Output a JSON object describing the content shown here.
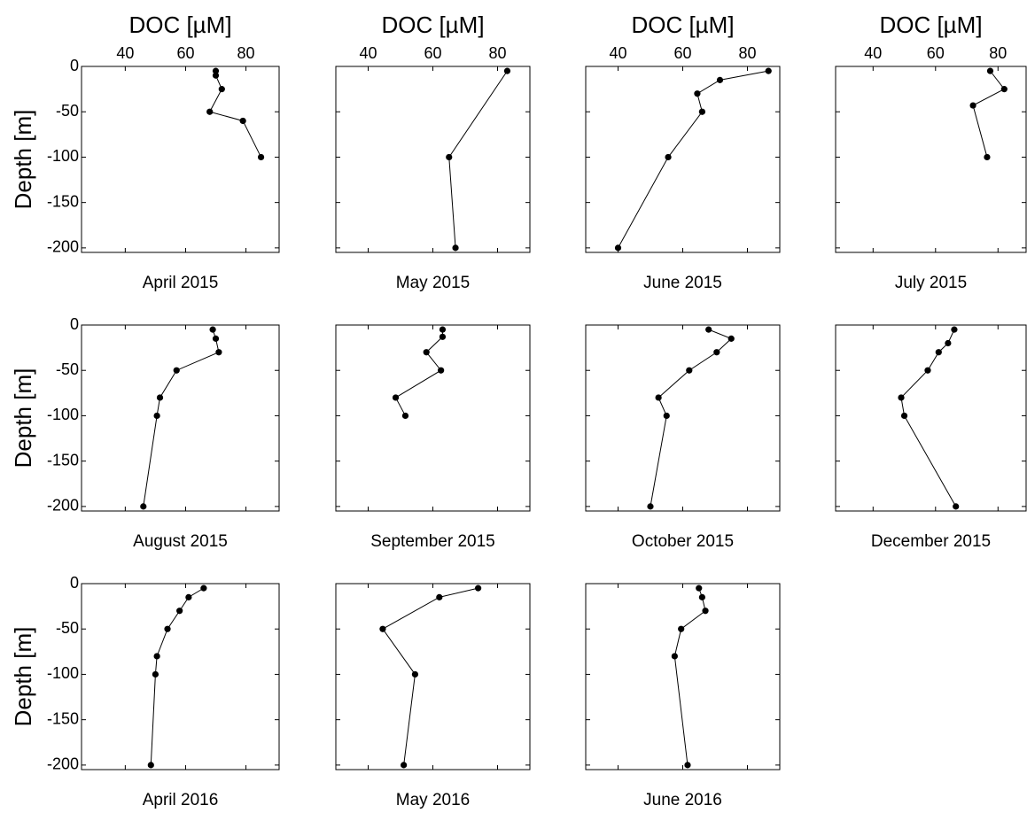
{
  "chart_data": [
    {
      "type": "line",
      "title": "April 2015",
      "xlabel": "DOC [µM]",
      "ylabel": "Depth [m]",
      "x": [
        70,
        70,
        72,
        68,
        79,
        85
      ],
      "values": [
        -5,
        -10,
        -25,
        -50,
        -60,
        -100
      ],
      "color": "#000000",
      "xlim": [
        25.5,
        91
      ],
      "ylim": [
        -205,
        0
      ],
      "xticks": [
        40,
        60,
        80
      ],
      "yticks": [
        0,
        -50,
        -100,
        -150,
        -200
      ]
    },
    {
      "type": "line",
      "title": "May 2015",
      "xlabel": "DOC [µM]",
      "x": [
        83,
        65,
        67
      ],
      "values": [
        -5,
        -100,
        -200
      ],
      "color": "#000000",
      "xlim": [
        30,
        90
      ],
      "ylim": [
        -205,
        0
      ],
      "xticks": [
        40,
        60,
        80
      ],
      "yticks": [
        0,
        -50,
        -100,
        -150,
        -200
      ]
    },
    {
      "type": "line",
      "title": "June 2015",
      "xlabel": "DOC [µM]",
      "x": [
        86.5,
        71.5,
        64.5,
        66,
        55.5,
        40
      ],
      "values": [
        -5,
        -15,
        -30,
        -50,
        -100,
        -200
      ],
      "color": "#000000",
      "xlim": [
        30,
        90
      ],
      "ylim": [
        -205,
        0
      ],
      "xticks": [
        40,
        60,
        80
      ],
      "yticks": [
        0,
        -50,
        -100,
        -150,
        -200
      ]
    },
    {
      "type": "line",
      "title": "July 2015",
      "xlabel": "DOC [µM]",
      "x": [
        77.5,
        82,
        72,
        76.5
      ],
      "values": [
        -5,
        -25,
        -43,
        -100
      ],
      "color": "#000000",
      "xlim": [
        28,
        89
      ],
      "ylim": [
        -205,
        0
      ],
      "xticks": [
        40,
        60,
        80
      ],
      "yticks": [
        0,
        -50,
        -100,
        -150,
        -200
      ]
    },
    {
      "type": "line",
      "title": "August 2015",
      "ylabel": "Depth [m]",
      "x": [
        69,
        70,
        71,
        57,
        51.5,
        50.5,
        46
      ],
      "values": [
        -5,
        -15,
        -30,
        -50,
        -80,
        -100,
        -200
      ],
      "color": "#000000",
      "xlim": [
        25.5,
        91
      ],
      "ylim": [
        -205,
        0
      ],
      "xticks": [
        40,
        60,
        80
      ],
      "yticks": [
        0,
        -50,
        -100,
        -150,
        -200
      ]
    },
    {
      "type": "line",
      "title": "September 2015",
      "x": [
        63,
        63,
        58,
        62.5,
        48.5,
        51.5
      ],
      "values": [
        -5,
        -13,
        -30,
        -50,
        -80,
        -100
      ],
      "color": "#000000",
      "xlim": [
        30,
        90
      ],
      "ylim": [
        -205,
        0
      ],
      "xticks": [
        40,
        60,
        80
      ],
      "yticks": [
        0,
        -50,
        -100,
        -150,
        -200
      ]
    },
    {
      "type": "line",
      "title": "October 2015",
      "x": [
        68,
        75,
        70.5,
        62,
        52.5,
        55,
        50
      ],
      "values": [
        -5,
        -15,
        -30,
        -50,
        -80,
        -100,
        -200
      ],
      "color": "#000000",
      "xlim": [
        30,
        90
      ],
      "ylim": [
        -205,
        0
      ],
      "xticks": [
        40,
        60,
        80
      ],
      "yticks": [
        0,
        -50,
        -100,
        -150,
        -200
      ]
    },
    {
      "type": "line",
      "title": "December 2015",
      "x": [
        66,
        64,
        61,
        57.5,
        49,
        50,
        66.5
      ],
      "values": [
        -5,
        -20,
        -30,
        -50,
        -80,
        -100,
        -200
      ],
      "color": "#000000",
      "xlim": [
        28,
        89
      ],
      "ylim": [
        -205,
        0
      ],
      "xticks": [
        40,
        60,
        80
      ],
      "yticks": [
        0,
        -50,
        -100,
        -150,
        -200
      ]
    },
    {
      "type": "line",
      "title": "April 2016",
      "ylabel": "Depth [m]",
      "x": [
        66,
        61,
        58,
        54,
        50.5,
        50,
        48.5
      ],
      "values": [
        -5,
        -15,
        -30,
        -50,
        -80,
        -100,
        -200
      ],
      "color": "#000000",
      "xlim": [
        25.5,
        91
      ],
      "ylim": [
        -205,
        0
      ],
      "xticks": [
        40,
        60,
        80
      ],
      "yticks": [
        0,
        -50,
        -100,
        -150,
        -200
      ]
    },
    {
      "type": "line",
      "title": "May 2016",
      "x": [
        74,
        62,
        44.5,
        54.5,
        51
      ],
      "values": [
        -5,
        -15,
        -50,
        -100,
        -200
      ],
      "color": "#000000",
      "xlim": [
        30,
        90
      ],
      "ylim": [
        -205,
        0
      ],
      "xticks": [
        40,
        60,
        80
      ],
      "yticks": [
        0,
        -50,
        -100,
        -150,
        -200
      ]
    },
    {
      "type": "line",
      "title": "June 2016",
      "x": [
        65,
        66,
        67,
        59.5,
        57.5,
        61.5
      ],
      "values": [
        -5,
        -15,
        -30,
        -50,
        -80,
        -200
      ],
      "color": "#000000",
      "xlim": [
        30,
        90
      ],
      "ylim": [
        -205,
        0
      ],
      "xticks": [
        40,
        60,
        80
      ],
      "yticks": [
        0,
        -50,
        -100,
        -150,
        -200
      ]
    }
  ]
}
